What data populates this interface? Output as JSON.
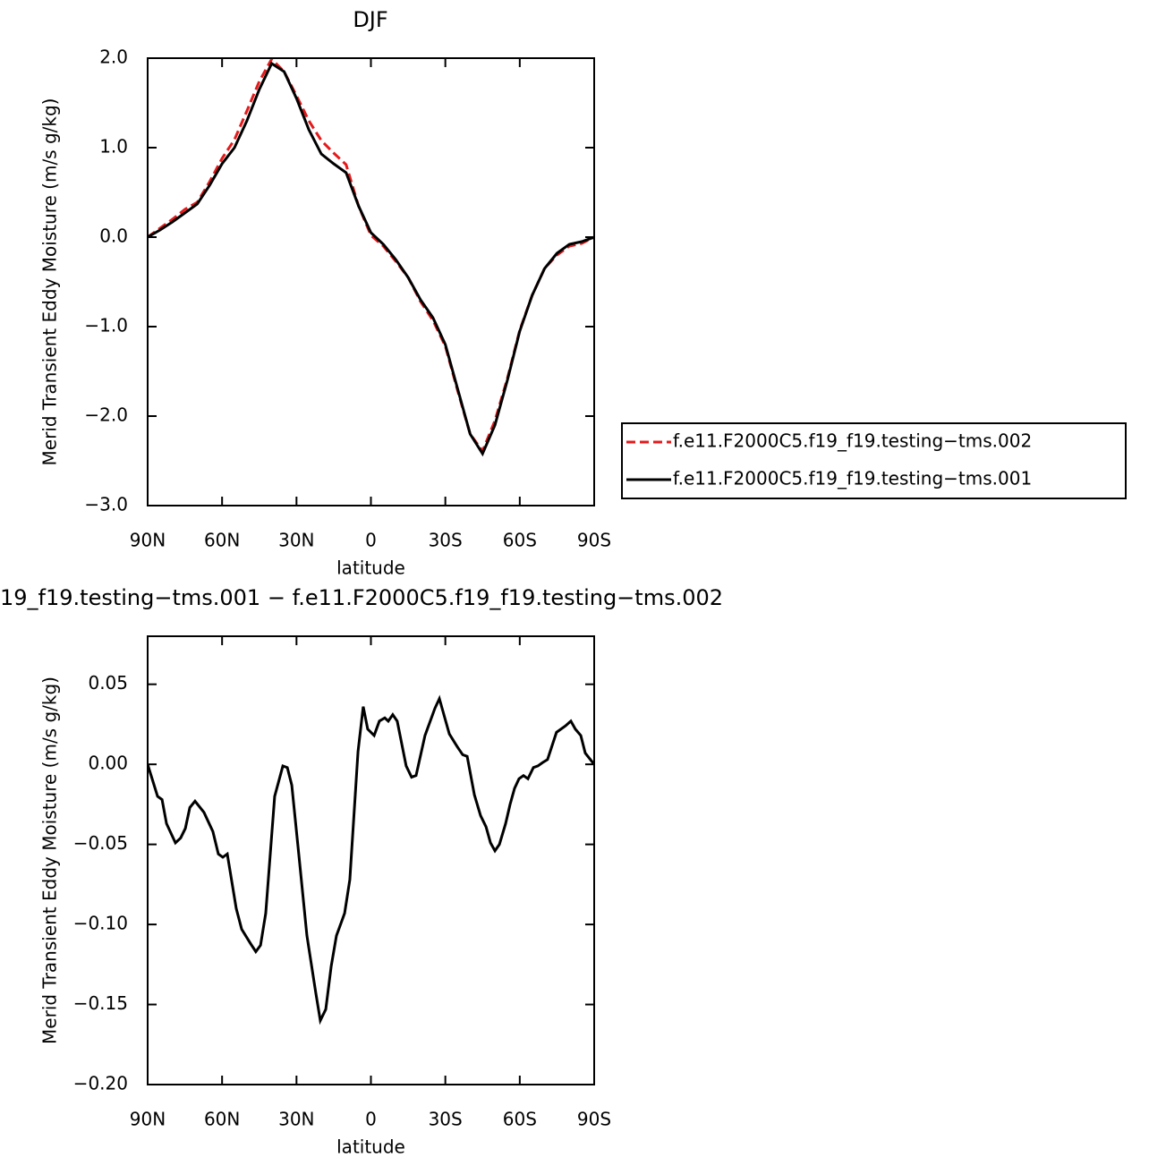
{
  "chart_data": [
    {
      "type": "line",
      "title": "DJF",
      "xlabel": "latitude",
      "ylabel": "Merid Transient Eddy Moisture (m/s g/kg)",
      "x": [
        90,
        85,
        80,
        75,
        70,
        65,
        60,
        55,
        50,
        45,
        40,
        35,
        30,
        25,
        20,
        15,
        10,
        5,
        0,
        -5,
        -10,
        -15,
        -20,
        -25,
        -30,
        -35,
        -40,
        -45,
        -50,
        -55,
        -60,
        -65,
        -70,
        -75,
        -80,
        -85,
        -90
      ],
      "series": [
        {
          "name": "f.e11.F2000C5.f19_f19.testing−tms.002",
          "color": "#e41a1c",
          "linestyle": "dashed",
          "values": [
            0.0,
            0.1,
            0.2,
            0.31,
            0.39,
            0.62,
            0.88,
            1.09,
            1.41,
            1.74,
            1.99,
            1.85,
            1.58,
            1.3,
            1.08,
            0.94,
            0.81,
            0.35,
            0.02,
            -0.1,
            -0.27,
            -0.45,
            -0.72,
            -0.93,
            -1.22,
            -1.72,
            -2.2,
            -2.39,
            -2.05,
            -1.58,
            -1.04,
            -0.65,
            -0.35,
            -0.2,
            -0.1,
            -0.07,
            0.0
          ]
        },
        {
          "name": "f.e11.F2000C5.f19_f19.testing−tms.001",
          "color": "#000000",
          "linestyle": "solid",
          "values": [
            0.0,
            0.08,
            0.17,
            0.27,
            0.37,
            0.58,
            0.82,
            1.0,
            1.3,
            1.65,
            1.94,
            1.85,
            1.55,
            1.2,
            0.93,
            0.82,
            0.72,
            0.35,
            0.05,
            -0.08,
            -0.25,
            -0.45,
            -0.7,
            -0.9,
            -1.2,
            -1.7,
            -2.2,
            -2.42,
            -2.1,
            -1.6,
            -1.05,
            -0.65,
            -0.35,
            -0.18,
            -0.08,
            -0.05,
            0.0
          ]
        }
      ],
      "xlim": [
        90,
        -90
      ],
      "ylim": [
        -3,
        2
      ],
      "xticks": [
        {
          "value": 90,
          "label": "90N"
        },
        {
          "value": 60,
          "label": "60N"
        },
        {
          "value": 30,
          "label": "30N"
        },
        0,
        {
          "value": -30,
          "label": "30S"
        },
        {
          "value": -60,
          "label": "60S"
        },
        {
          "value": -90,
          "label": "90S"
        }
      ],
      "yticks": [
        {
          "value": 2,
          "label": "2.0"
        },
        {
          "value": 1,
          "label": "1.0"
        },
        {
          "value": 0,
          "label": "0.0"
        },
        {
          "value": -1,
          "label": "−1.0"
        },
        {
          "value": -2,
          "label": "−2.0"
        },
        {
          "value": -3,
          "label": "−3.0"
        }
      ]
    },
    {
      "type": "line",
      "title": "19_f19.testing−tms.001 − f.e11.F2000C5.f19_f19.testing−tms.002",
      "xlabel": "latitude",
      "ylabel": "Merid Transient Eddy Moisture (m/s g/kg)",
      "x": [
        90,
        88.2,
        86,
        84.2,
        82.4,
        78.8,
        76.7,
        74.8,
        73,
        70.9,
        67.3,
        63.7,
        61.5,
        59.7,
        57.9,
        54.3,
        52.1,
        48.5,
        46.4,
        44.5,
        42.4,
        38.8,
        35.5,
        33.7,
        31.9,
        28.7,
        25.8,
        22.2,
        20.4,
        18.2,
        16,
        13.9,
        10.6,
        8.5,
        5.2,
        3.1,
        1.3,
        -1.3,
        -3.4,
        -5.6,
        -7,
        -8.8,
        -10.6,
        -14.2,
        -16.4,
        -18.2,
        -21.8,
        -25.8,
        -27.6,
        -31.6,
        -34.8,
        -37,
        -38.8,
        -41.7,
        -44.2,
        -46.4,
        -48.2,
        -50,
        -51.8,
        -54.3,
        -56.1,
        -57.9,
        -59.7,
        -61.5,
        -63.3,
        -65.5,
        -67.3,
        -69.1,
        -71.2,
        -74.8,
        -78.4,
        -80.6,
        -82.4,
        -84.6,
        -86.4,
        -90
      ],
      "series": [
        {
          "color": "#000000",
          "linestyle": "solid",
          "values": [
            0,
            -0.009,
            -0.02,
            -0.022,
            -0.037,
            -0.049,
            -0.046,
            -0.04,
            -0.027,
            -0.023,
            -0.03,
            -0.042,
            -0.056,
            -0.058,
            -0.056,
            -0.09,
            -0.103,
            -0.112,
            -0.117,
            -0.113,
            -0.093,
            -0.02,
            -0.001,
            -0.002,
            -0.013,
            -0.062,
            -0.107,
            -0.143,
            -0.16,
            -0.153,
            -0.126,
            -0.107,
            -0.093,
            -0.072,
            0.008,
            0.036,
            0.022,
            0.018,
            0.027,
            0.029,
            0.027,
            0.031,
            0.027,
            -0.001,
            -0.008,
            -0.007,
            0.018,
            0.035,
            0.041,
            0.019,
            0.011,
            0.006,
            0.005,
            -0.019,
            -0.032,
            -0.039,
            -0.049,
            -0.054,
            -0.05,
            -0.037,
            -0.025,
            -0.015,
            -0.009,
            -0.007,
            -0.009,
            -0.002,
            -0.001,
            0.001,
            0.003,
            0.02,
            0.024,
            0.027,
            0.022,
            0.018,
            0.007,
            0
          ]
        }
      ],
      "xlim": [
        90,
        -90
      ],
      "ylim": [
        -0.2,
        0.08
      ],
      "xticks": [
        {
          "value": 90,
          "label": "90N"
        },
        {
          "value": 60,
          "label": "60N"
        },
        {
          "value": 30,
          "label": "30N"
        },
        0,
        {
          "value": -30,
          "label": "30S"
        },
        {
          "value": -60,
          "label": "60S"
        },
        {
          "value": -90,
          "label": "90S"
        }
      ],
      "yticks": [
        0.05,
        {
          "value": 0,
          "label": "0.00"
        },
        {
          "value": -0.05,
          "label": "−0.05"
        },
        {
          "value": -0.1,
          "label": "−0.10"
        },
        {
          "value": -0.15,
          "label": "−0.15"
        },
        {
          "value": -0.2,
          "label": "−0.20"
        }
      ]
    }
  ]
}
